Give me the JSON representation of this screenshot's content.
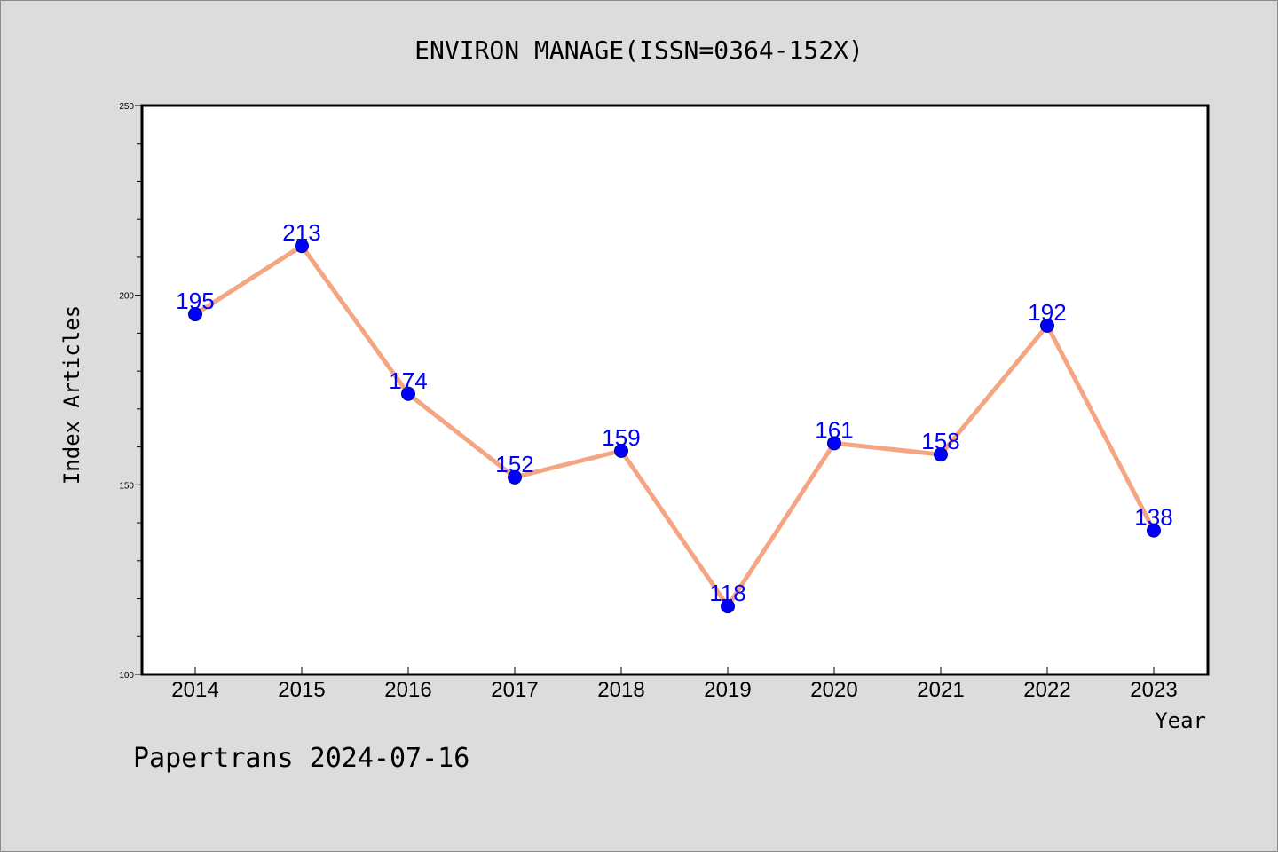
{
  "chart_data": {
    "type": "line",
    "title": "ENVIRON MANAGE(ISSN=0364-152X)",
    "xlabel": "Year",
    "ylabel": "Index Articles",
    "categories": [
      "2014",
      "2015",
      "2016",
      "2017",
      "2018",
      "2019",
      "2020",
      "2021",
      "2022",
      "2023"
    ],
    "series": [
      {
        "values": [
          195,
          213,
          174,
          152,
          159,
          118,
          161,
          158,
          192,
          138
        ]
      }
    ],
    "data_labels": [
      "195",
      "213",
      "174",
      "152",
      "159",
      "118",
      "161",
      "158",
      "192",
      "138"
    ],
    "ylim": [
      100,
      250
    ],
    "yticks": [
      100,
      150,
      200,
      250
    ],
    "ytick_labels": [
      "100",
      "150",
      "200",
      "250"
    ],
    "grid": false,
    "colors": {
      "line": "#f4a582",
      "marker": "#0000ff",
      "data_label": "#0000ff",
      "plot_background": "#ffffff",
      "figure_background": "#dcdcdc"
    }
  },
  "footer": "Papertrans 2024-07-16"
}
